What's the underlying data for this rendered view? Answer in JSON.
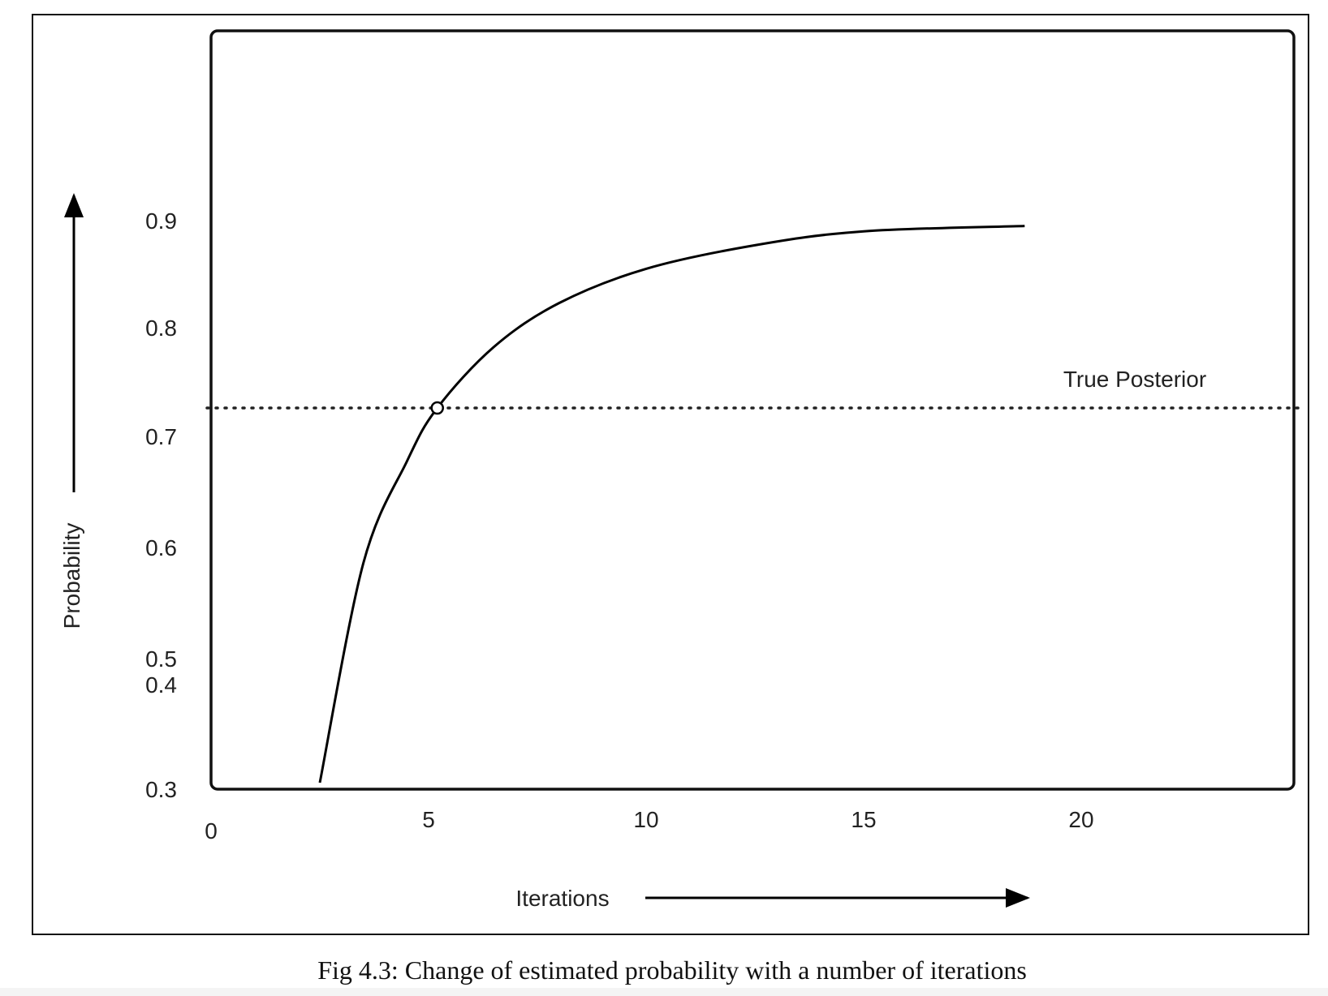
{
  "caption": "Fig 4.3: Change of estimated probability with a number of iterations",
  "chart_data": {
    "type": "line",
    "xlabel": "Iterations",
    "ylabel": "Probability",
    "x_ticks": [
      {
        "label": "0",
        "value": 0
      },
      {
        "label": "5",
        "value": 5
      },
      {
        "label": "10",
        "value": 10
      },
      {
        "label": "15",
        "value": 15
      },
      {
        "label": "20",
        "value": 20
      }
    ],
    "y_ticks": [
      {
        "label": "0.9",
        "value": 0.9
      },
      {
        "label": "0.8",
        "value": 0.8
      },
      {
        "label": "0.7",
        "value": 0.7
      },
      {
        "label": "0.6",
        "value": 0.6
      },
      {
        "label": "0.5",
        "value": 0.5
      },
      {
        "label": "0.4",
        "value": 0.4
      },
      {
        "label": "0.3",
        "value": 0.3
      }
    ],
    "xlim": [
      0,
      25
    ],
    "ylim": [
      0.3,
      1.0
    ],
    "grid": false,
    "series": [
      {
        "values": [
          {
            "x": 2.5,
            "y": 0.375
          },
          {
            "x": 3.5,
            "y": 0.58
          },
          {
            "x": 4.5,
            "y": 0.675
          },
          {
            "x": 5.2,
            "y": 0.725
          },
          {
            "x": 6.5,
            "y": 0.782
          },
          {
            "x": 8.0,
            "y": 0.823
          },
          {
            "x": 10.0,
            "y": 0.855
          },
          {
            "x": 12.5,
            "y": 0.877
          },
          {
            "x": 15.0,
            "y": 0.89
          },
          {
            "x": 18.7,
            "y": 0.895
          }
        ]
      }
    ],
    "reference_line": {
      "label": "True Posterior",
      "y": 0.725,
      "style": "dotted"
    },
    "marker": {
      "x": 5.2,
      "y": 0.725,
      "shape": "open-circle"
    }
  }
}
